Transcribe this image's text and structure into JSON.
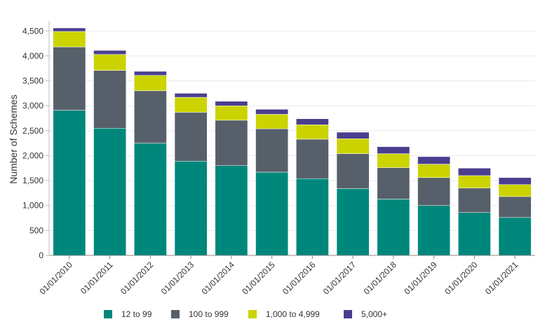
{
  "chart_data": {
    "type": "bar",
    "stacked": true,
    "ylabel": "Number of Schemes",
    "xlabel": "",
    "ylim": [
      0,
      4700
    ],
    "yticks": [
      0,
      500,
      1000,
      1500,
      2000,
      2500,
      3000,
      3500,
      4000,
      4500
    ],
    "ytick_labels": [
      "0",
      "500",
      "1,000",
      "1,500",
      "2,000",
      "2,500",
      "3,000",
      "3,500",
      "4,000",
      "4,500"
    ],
    "grid": true,
    "legend_position": "bottom",
    "categories": [
      "01/01/2010",
      "01/01/2011",
      "01/01/2012",
      "01/01/2013",
      "01/01/2014",
      "01/01/2015",
      "01/01/2016",
      "01/01/2017",
      "01/01/2018",
      "01/01/2019",
      "01/01/2020",
      "01/01/2021"
    ],
    "series": [
      {
        "name": "12 to 99",
        "color": "#00877c",
        "values": [
          2910,
          2550,
          2250,
          1890,
          1800,
          1670,
          1540,
          1340,
          1130,
          1000,
          860,
          760
        ]
      },
      {
        "name": "100 to 999",
        "color": "#57606a",
        "values": [
          1270,
          1160,
          1050,
          980,
          910,
          870,
          790,
          700,
          630,
          560,
          490,
          420
        ]
      },
      {
        "name": "1,000 to 4,999",
        "color": "#cbd300",
        "values": [
          310,
          320,
          310,
          300,
          290,
          290,
          290,
          300,
          280,
          270,
          250,
          240
        ]
      },
      {
        "name": "5,000+",
        "color": "#4a3f8f",
        "values": [
          70,
          80,
          80,
          80,
          90,
          100,
          120,
          130,
          140,
          150,
          150,
          140
        ]
      }
    ]
  }
}
